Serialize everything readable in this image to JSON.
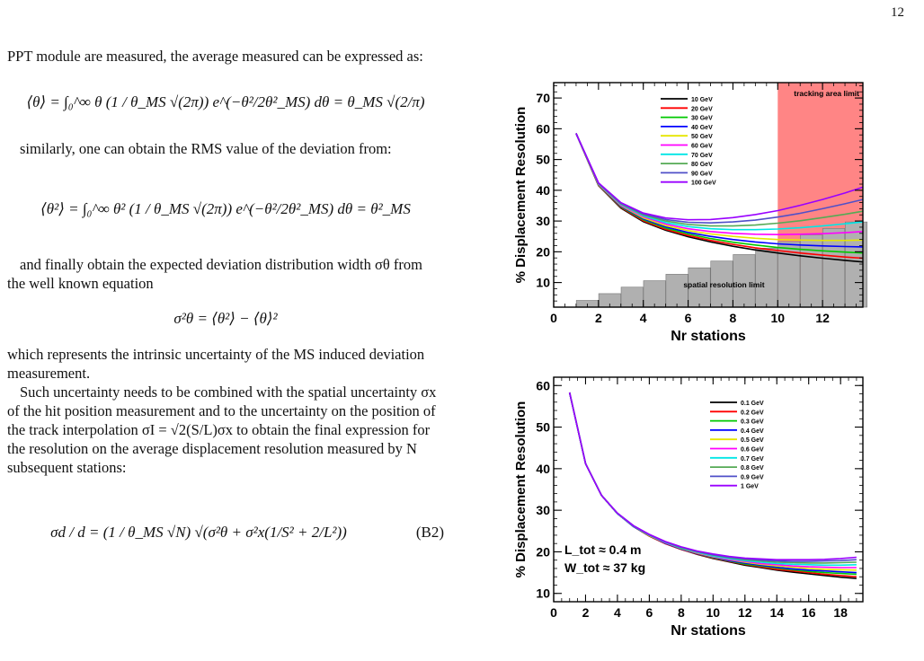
{
  "page": {
    "number": "12"
  },
  "text": {
    "p1": "PPT module are measured, the average measured can be expressed as:",
    "eq1": "⟨θ⟩ = ∫₀^∞ θ (1 / θ_MS √(2π)) e^(−θ²/2θ²_MS) dθ = θ_MS √(2/π)",
    "p2": "similarly, one can obtain the RMS value of the deviation from:",
    "eq2": "⟨θ²⟩ = ∫₀^∞ θ² (1 / θ_MS √(2π)) e^(−θ²/2θ²_MS) dθ = θ²_MS",
    "p3": "and finally obtain the expected deviation distribution width σθ from the well known equation",
    "eq3": "σ²θ = ⟨θ²⟩ − ⟨θ⟩²",
    "p4": "which represents the intrinsic uncertainty of the MS induced deviation measurement.",
    "p5": "Such uncertainty needs to be combined with the spatial uncertainty σx of the hit position measurement and to the uncertainty on the position of the track interpolation σI = √2(S/L)σx to obtain the final expression for the resolution on the average displacement resolution measured by N subsequent stations:",
    "eq4": "σd / d = (1 / θ_MS √N) √(σ²θ + σ²x(1/S² + 2/L²))",
    "eq4_num": "(B2)"
  },
  "chart_data": [
    {
      "type": "line",
      "title": "",
      "xlabel": "Nr stations",
      "ylabel": "% Displacement Resolution",
      "xlim": [
        0,
        13.8
      ],
      "ylim": [
        2,
        75
      ],
      "xticks": [
        "0",
        "2",
        "4",
        "6",
        "8",
        "10",
        "12"
      ],
      "yticks": [
        "10",
        "20",
        "30",
        "40",
        "50",
        "60",
        "70"
      ],
      "annotations": {
        "tracking": "tracking area limit",
        "spatial": "spatial resolution limit"
      },
      "tracking_area_start": 10,
      "legend_position": "top-center",
      "x": [
        1,
        2,
        3,
        4,
        5,
        6,
        7,
        8,
        9,
        10,
        11,
        12,
        13,
        13.8
      ],
      "series": [
        {
          "name": "10 GeV",
          "color": "#000000",
          "values": [
            58.5,
            41.5,
            34.2,
            29.8,
            27.0,
            24.9,
            23.2,
            21.8,
            20.6,
            19.6,
            18.7,
            17.9,
            17.2,
            16.7
          ]
        },
        {
          "name": "20 GeV",
          "color": "#ff0000",
          "values": [
            58.5,
            41.6,
            34.4,
            30.1,
            27.3,
            25.3,
            23.7,
            22.4,
            21.3,
            20.4,
            19.6,
            18.9,
            18.3,
            17.9
          ]
        },
        {
          "name": "30 GeV",
          "color": "#00c800",
          "values": [
            58.5,
            41.7,
            34.6,
            30.4,
            27.7,
            25.8,
            24.3,
            23.1,
            22.2,
            21.4,
            20.8,
            20.3,
            19.9,
            19.6
          ]
        },
        {
          "name": "40 GeV",
          "color": "#0000ff",
          "values": [
            58.5,
            41.8,
            34.8,
            30.7,
            28.1,
            26.3,
            25.0,
            24.0,
            23.2,
            22.6,
            22.2,
            21.9,
            21.7,
            21.6
          ]
        },
        {
          "name": "50 GeV",
          "color": "#e6e600",
          "values": [
            58.5,
            41.9,
            35.0,
            31.0,
            28.5,
            26.9,
            25.8,
            25.0,
            24.4,
            24.0,
            23.8,
            23.7,
            23.7,
            23.8
          ]
        },
        {
          "name": "60 GeV",
          "color": "#ff00ff",
          "values": [
            58.5,
            42.0,
            35.2,
            31.4,
            29.0,
            27.5,
            26.6,
            26.0,
            25.7,
            25.6,
            25.7,
            25.9,
            26.2,
            26.6
          ]
        },
        {
          "name": "70 GeV",
          "color": "#00e6e6",
          "values": [
            58.5,
            42.1,
            35.4,
            31.7,
            29.5,
            28.2,
            27.5,
            27.2,
            27.2,
            27.4,
            27.8,
            28.4,
            29.1,
            29.7
          ]
        },
        {
          "name": "80 GeV",
          "color": "#55aa55",
          "values": [
            58.5,
            42.2,
            35.6,
            32.0,
            30.0,
            28.9,
            28.4,
            28.4,
            28.7,
            29.3,
            30.1,
            31.1,
            32.2,
            33.2
          ]
        },
        {
          "name": "90 GeV",
          "color": "#5050c8",
          "values": [
            58.5,
            42.3,
            35.8,
            32.3,
            30.5,
            29.6,
            29.4,
            29.7,
            30.3,
            31.3,
            32.5,
            34.0,
            35.6,
            37.0
          ]
        },
        {
          "name": "100 GeV",
          "color": "#9900ff",
          "values": [
            58.5,
            42.4,
            36.0,
            32.6,
            31.0,
            30.4,
            30.5,
            31.1,
            32.1,
            33.4,
            35.1,
            37.0,
            39.1,
            41.0
          ]
        }
      ],
      "bars": {
        "x": [
          1.5,
          2.5,
          3.5,
          4.5,
          5.5,
          6.5,
          7.5,
          8.5,
          9.5,
          10.5,
          11.5,
          12.5,
          13.5
        ],
        "values": [
          4.2,
          6.4,
          8.5,
          10.6,
          12.7,
          14.8,
          17.0,
          19.1,
          21.2,
          23.3,
          25.5,
          27.6,
          29.7
        ]
      }
    },
    {
      "type": "line",
      "title": "",
      "xlabel": "Nr stations",
      "ylabel": "% Displacement Resolution",
      "xlim": [
        0,
        19.4
      ],
      "ylim": [
        8,
        62
      ],
      "xticks": [
        "0",
        "2",
        "4",
        "6",
        "8",
        "10",
        "12",
        "14",
        "16",
        "18"
      ],
      "yticks": [
        "10",
        "20",
        "30",
        "40",
        "50",
        "60"
      ],
      "annotation_lines": [
        "L_tot ≈ 0.4 m",
        "W_tot ≈ 37 kg"
      ],
      "annotation_sub": [
        "tot",
        "tot"
      ],
      "legend_position": "top-right",
      "x": [
        1,
        2,
        3,
        4,
        5,
        6,
        7,
        8,
        9,
        10,
        11,
        12,
        13,
        14,
        15,
        16,
        17,
        18,
        19
      ],
      "series": [
        {
          "name": "0.1 GeV",
          "color": "#000000",
          "values": [
            58.3,
            41.2,
            33.6,
            29.2,
            26.1,
            23.8,
            22.0,
            20.6,
            19.4,
            18.4,
            17.6,
            16.8,
            16.2,
            15.6,
            15.1,
            14.7,
            14.3,
            13.9,
            13.6
          ]
        },
        {
          "name": "0.2 GeV",
          "color": "#ff0000",
          "values": [
            58.3,
            41.2,
            33.6,
            29.2,
            26.1,
            23.8,
            22.0,
            20.6,
            19.5,
            18.5,
            17.7,
            17.0,
            16.4,
            15.8,
            15.4,
            15.0,
            14.6,
            14.3,
            14.0
          ]
        },
        {
          "name": "0.3 GeV",
          "color": "#00c800",
          "values": [
            58.3,
            41.2,
            33.6,
            29.2,
            26.1,
            23.9,
            22.1,
            20.7,
            19.6,
            18.6,
            17.8,
            17.1,
            16.6,
            16.1,
            15.7,
            15.3,
            15.0,
            14.8,
            14.6
          ]
        },
        {
          "name": "0.4 GeV",
          "color": "#0000ff",
          "values": [
            58.3,
            41.2,
            33.6,
            29.2,
            26.1,
            23.9,
            22.1,
            20.7,
            19.6,
            18.7,
            17.9,
            17.3,
            16.8,
            16.3,
            15.9,
            15.6,
            15.4,
            15.2,
            15.0
          ]
        },
        {
          "name": "0.5 GeV",
          "color": "#e6e600",
          "values": [
            58.3,
            41.2,
            33.6,
            29.2,
            26.2,
            23.9,
            22.2,
            20.8,
            19.7,
            18.8,
            18.1,
            17.5,
            17.0,
            16.6,
            16.3,
            16.0,
            15.8,
            15.7,
            15.6
          ]
        },
        {
          "name": "0.6 GeV",
          "color": "#ff00ff",
          "values": [
            58.3,
            41.2,
            33.6,
            29.2,
            26.2,
            24.0,
            22.2,
            20.9,
            19.8,
            18.9,
            18.2,
            17.7,
            17.2,
            16.9,
            16.6,
            16.4,
            16.3,
            16.2,
            16.2
          ]
        },
        {
          "name": "0.7 GeV",
          "color": "#00e6e6",
          "values": [
            58.3,
            41.2,
            33.6,
            29.2,
            26.2,
            24.0,
            22.3,
            20.9,
            19.9,
            19.0,
            18.4,
            17.9,
            17.5,
            17.2,
            17.0,
            16.9,
            16.8,
            16.8,
            16.9
          ]
        },
        {
          "name": "0.8 GeV",
          "color": "#55aa55",
          "values": [
            58.3,
            41.2,
            33.6,
            29.3,
            26.3,
            24.1,
            22.4,
            21.0,
            20.0,
            19.2,
            18.6,
            18.1,
            17.8,
            17.5,
            17.4,
            17.3,
            17.3,
            17.4,
            17.5
          ]
        },
        {
          "name": "0.9 GeV",
          "color": "#5050c8",
          "values": [
            58.3,
            41.2,
            33.6,
            29.3,
            26.3,
            24.1,
            22.4,
            21.1,
            20.1,
            19.3,
            18.7,
            18.3,
            18.0,
            17.8,
            17.7,
            17.7,
            17.8,
            17.9,
            18.1
          ]
        },
        {
          "name": "1 GeV",
          "color": "#9900ff",
          "values": [
            58.3,
            41.2,
            33.6,
            29.3,
            26.3,
            24.2,
            22.5,
            21.2,
            20.2,
            19.5,
            18.9,
            18.5,
            18.3,
            18.1,
            18.1,
            18.1,
            18.2,
            18.4,
            18.7
          ]
        }
      ]
    }
  ]
}
